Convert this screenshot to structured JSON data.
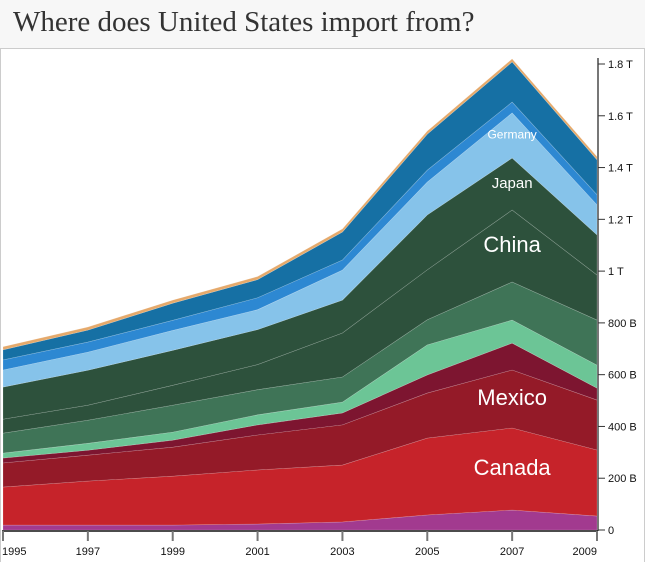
{
  "title": "Where does United States import from?",
  "chart_data": {
    "type": "area",
    "stacked": true,
    "title": "Where does United States import from?",
    "xlabel": "",
    "ylabel": "",
    "x": [
      1995,
      1997,
      1999,
      2001,
      2003,
      2005,
      2007,
      2009
    ],
    "x_tick_labels": [
      "1995",
      "1997",
      "1999",
      "2001",
      "2003",
      "2005",
      "2007",
      "2009"
    ],
    "ylim": [
      0,
      1800
    ],
    "y_unit": "billion USD",
    "y_ticks": [
      0,
      200,
      400,
      600,
      800,
      1000,
      1200,
      1400,
      1600,
      1800
    ],
    "y_tick_labels": [
      "0",
      "200 B",
      "400 B",
      "600 B",
      "800 B",
      "1 T",
      "1.2 T",
      "1.4 T",
      "1.6 T",
      "1.8 T"
    ],
    "series": [
      {
        "color": "#a23a8f",
        "values": [
          19,
          19,
          19,
          23,
          31,
          58,
          77,
          54
        ]
      },
      {
        "label": "Canada",
        "color": "#c6232a",
        "values": [
          147,
          170,
          189,
          209,
          220,
          297,
          317,
          255
        ]
      },
      {
        "label": "Mexico",
        "color": "#941a28",
        "values": [
          93,
          100,
          112,
          135,
          155,
          174,
          224,
          193
        ]
      },
      {
        "color": "#7d1530",
        "values": [
          19,
          19,
          27,
          39,
          46,
          70,
          104,
          46
        ]
      },
      {
        "color": "#6cc596",
        "values": [
          19,
          27,
          31,
          39,
          42,
          116,
          89,
          89
        ]
      },
      {
        "color": "#3f7457",
        "values": [
          77,
          89,
          104,
          97,
          97,
          97,
          147,
          174
        ]
      },
      {
        "label": "China",
        "color": "#2d513c",
        "values": [
          54,
          58,
          77,
          97,
          170,
          193,
          278,
          174
        ]
      },
      {
        "label": "Japan",
        "color": "#2d513c",
        "values": [
          124,
          135,
          135,
          135,
          127,
          212,
          201,
          155
        ]
      },
      {
        "label": "Germany",
        "color": "#86c3ea",
        "values": [
          66,
          70,
          77,
          77,
          116,
          127,
          174,
          116
        ]
      },
      {
        "color": "#2d88d2",
        "values": [
          39,
          39,
          39,
          46,
          39,
          46,
          42,
          39
        ]
      },
      {
        "color": "#1670a4",
        "values": [
          39,
          46,
          66,
          70,
          108,
          139,
          155,
          135
        ]
      },
      {
        "color": "#e5a96b",
        "values": [
          12,
          12,
          12,
          12,
          12,
          12,
          12,
          12
        ]
      }
    ]
  }
}
